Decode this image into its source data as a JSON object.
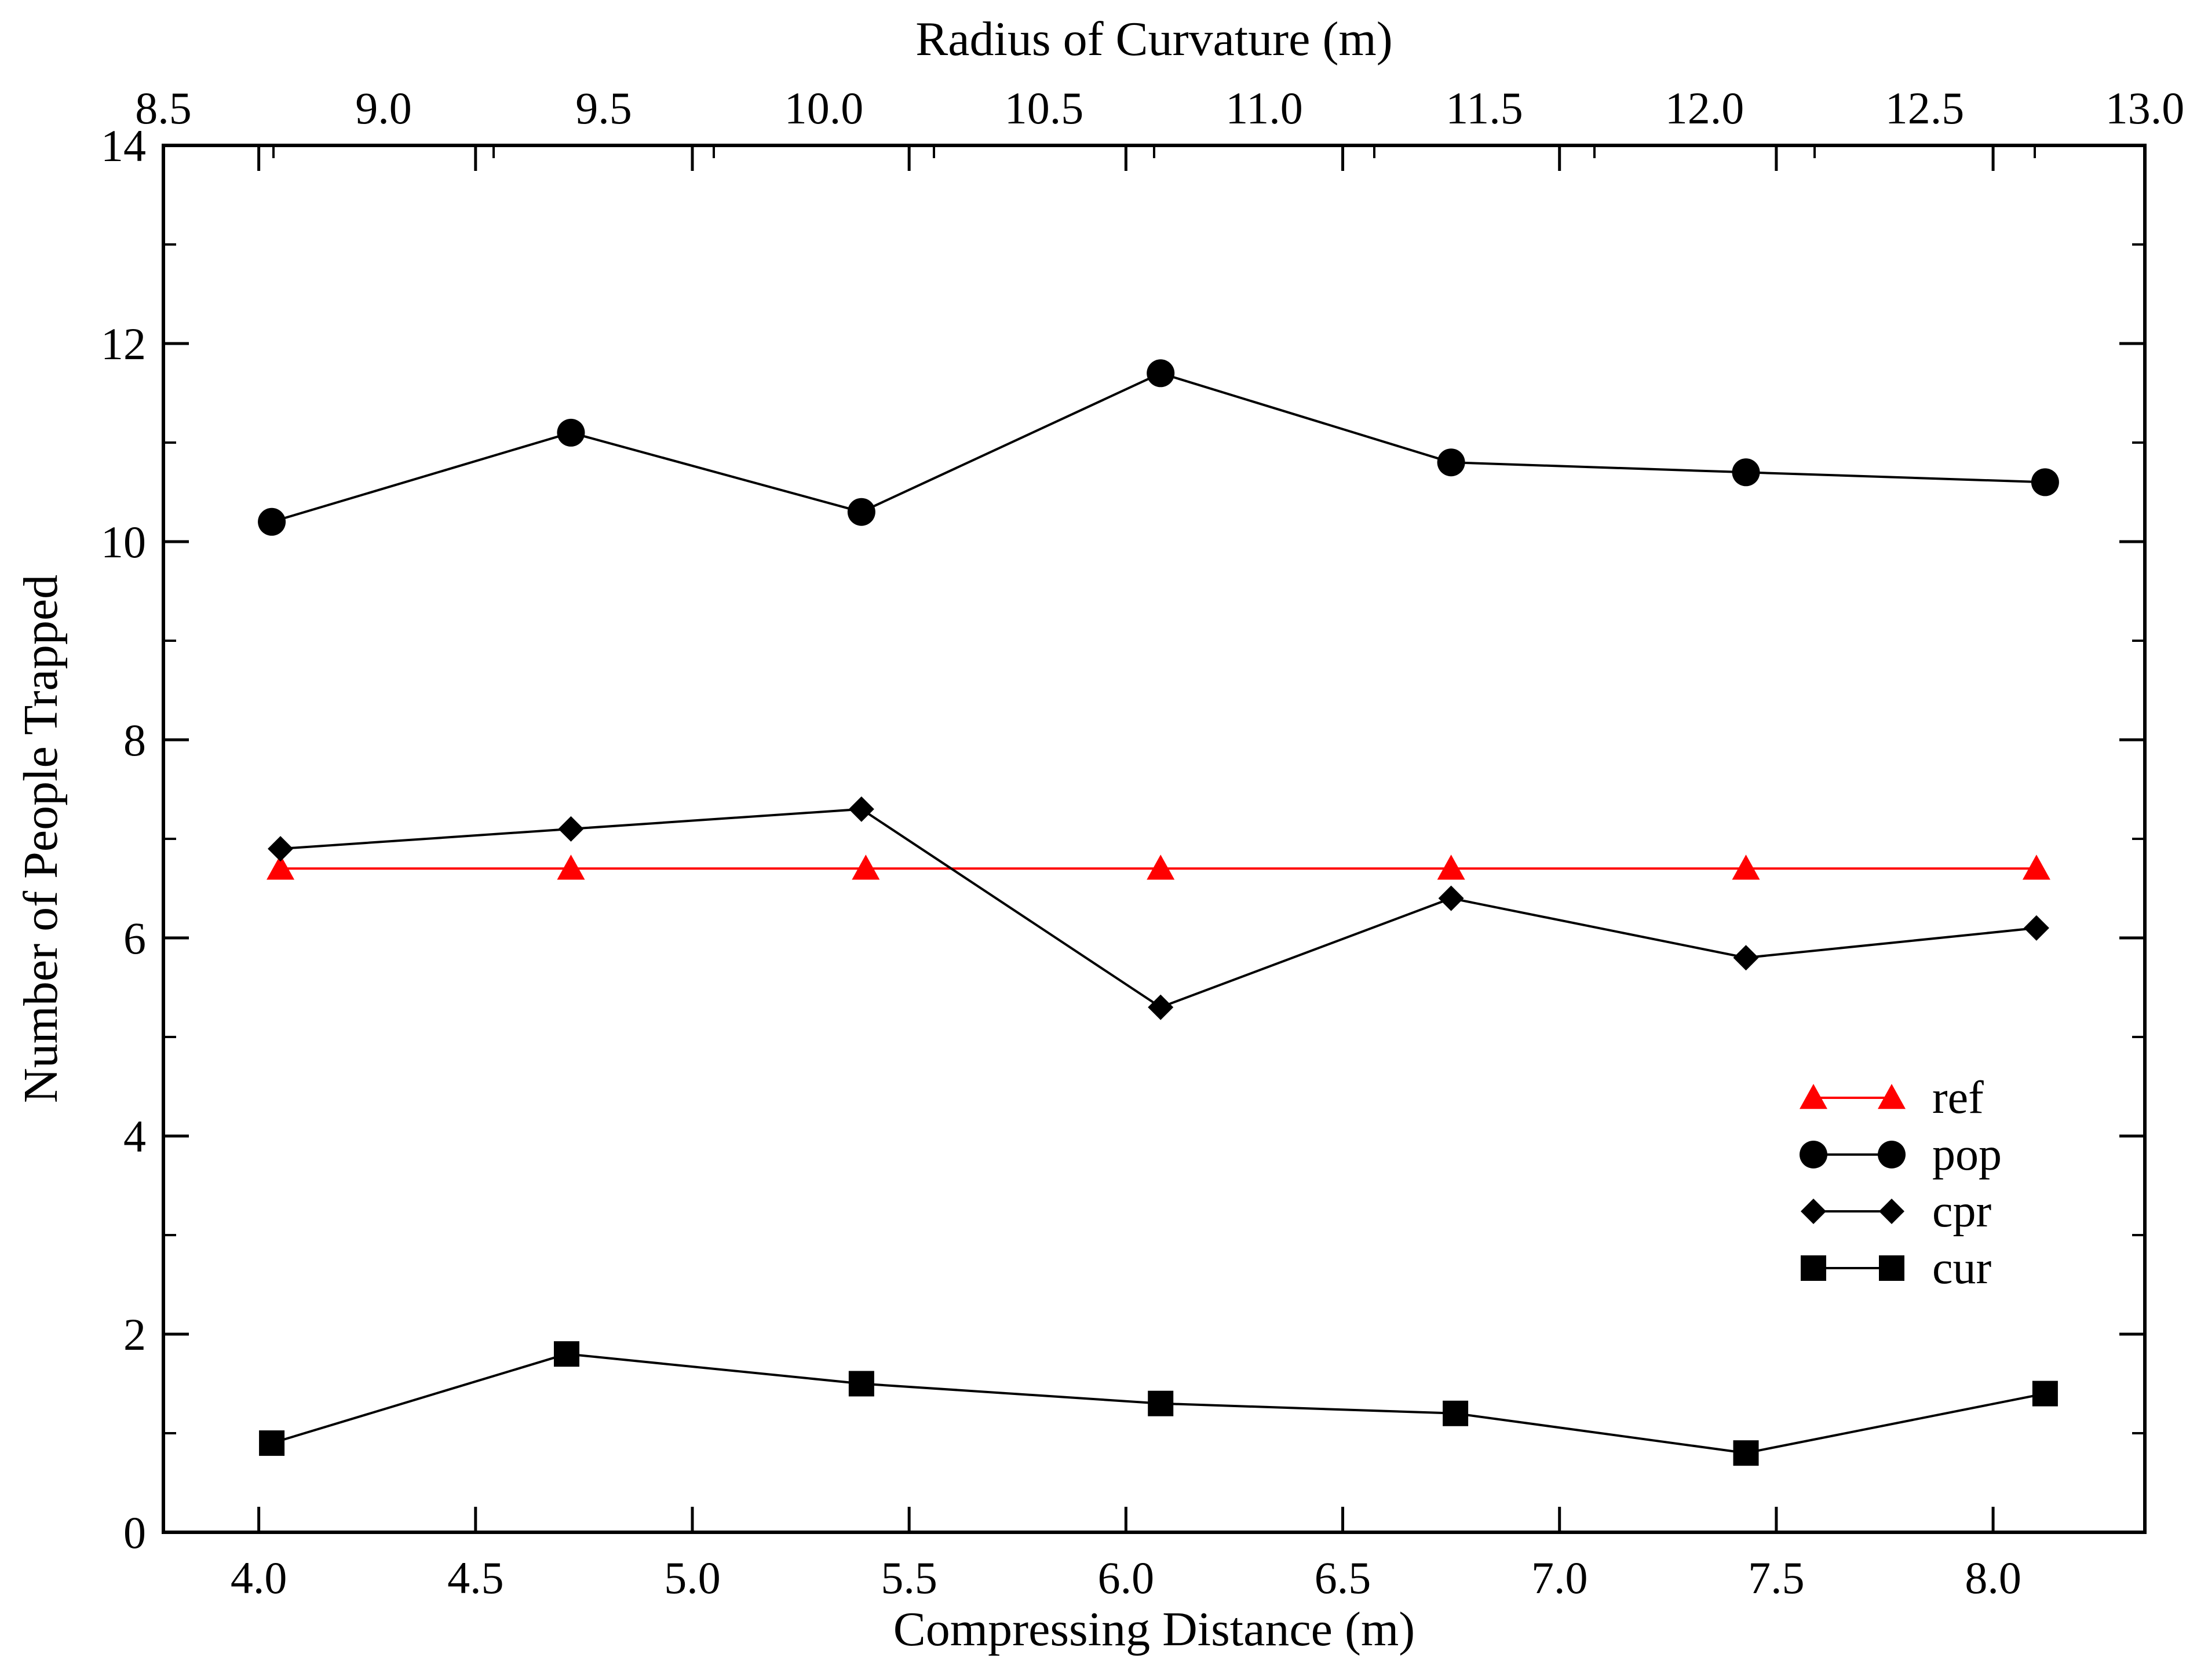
{
  "chart_data": {
    "type": "line",
    "title": "",
    "xlabel": "Compressing Distance (m)",
    "ylabel": "Number of People Trapped",
    "x2label": "Radius of Curvature (m)",
    "xlim": [
      3.78,
      8.35
    ],
    "ylim": [
      0,
      14
    ],
    "x2lim": [
      8.5,
      13.0
    ],
    "x_ticks": [
      "4.0",
      "4.5",
      "5.0",
      "5.5",
      "6.0",
      "6.5",
      "7.0",
      "7.5",
      "8.0"
    ],
    "x2_ticks": [
      "8.5",
      "9.0",
      "9.5",
      "10.0",
      "10.5",
      "11.0",
      "11.5",
      "12.0",
      "12.5",
      "13.0"
    ],
    "y_ticks": [
      "0",
      "2",
      "4",
      "6",
      "8",
      "10",
      "12",
      "14"
    ],
    "grid": false,
    "legend_position": "right-center",
    "series": [
      {
        "name": "ref",
        "color": "#ff0000",
        "marker": "triangle",
        "x": [
          4.05,
          4.72,
          5.4,
          6.08,
          6.75,
          7.43,
          8.1
        ],
        "y": [
          6.7,
          6.7,
          6.7,
          6.7,
          6.7,
          6.7,
          6.7
        ]
      },
      {
        "name": "pop",
        "color": "#000000",
        "marker": "circle",
        "x": [
          4.03,
          4.72,
          5.39,
          6.08,
          6.75,
          7.43,
          8.12
        ],
        "y": [
          10.2,
          11.1,
          10.3,
          11.7,
          10.8,
          10.7,
          10.6
        ]
      },
      {
        "name": "cpr",
        "color": "#000000",
        "marker": "diamond",
        "x": [
          4.05,
          4.72,
          5.39,
          6.08,
          6.75,
          7.43,
          8.1
        ],
        "y": [
          6.9,
          7.1,
          7.3,
          5.3,
          6.4,
          5.8,
          6.1
        ]
      },
      {
        "name": "cur",
        "color": "#000000",
        "marker": "square",
        "x": [
          4.03,
          4.71,
          5.39,
          6.08,
          6.76,
          7.43,
          8.12
        ],
        "y": [
          0.9,
          1.8,
          1.5,
          1.3,
          1.2,
          0.8,
          1.4
        ]
      }
    ]
  }
}
